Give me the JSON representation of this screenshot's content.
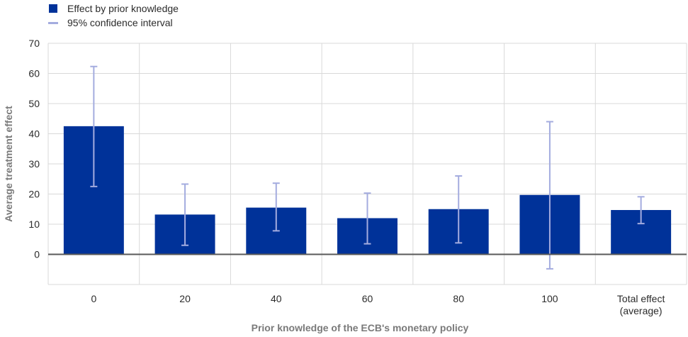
{
  "legend": {
    "bar_label": "Effect by prior knowledge",
    "ci_label": "95% confidence interval"
  },
  "colors": {
    "bar": "#003299",
    "ci": "#a4acdf",
    "grid": "#d9d9d9",
    "zero_line": "#595959"
  },
  "chart_data": {
    "type": "bar",
    "categories": [
      "0",
      "20",
      "40",
      "60",
      "80",
      "100",
      "Total effect\n(average)"
    ],
    "series": [
      {
        "name": "Effect by prior knowledge",
        "values": [
          42.5,
          13.2,
          15.5,
          12.0,
          15.0,
          19.7,
          14.7
        ]
      }
    ],
    "confidence_interval": {
      "name": "95% confidence interval",
      "lower": [
        22.5,
        3.0,
        7.8,
        3.5,
        3.8,
        -4.8,
        10.2
      ],
      "upper": [
        62.3,
        23.3,
        23.6,
        20.3,
        26.0,
        44.0,
        19.1
      ]
    },
    "xlabel": "Prior knowledge of the ECB's monetary policy",
    "ylabel": "Average treatment effect",
    "ylim": [
      -10,
      70
    ],
    "yticks": [
      0,
      10,
      20,
      30,
      40,
      50,
      60,
      70
    ],
    "grid": true,
    "legend_position": "top-left"
  }
}
